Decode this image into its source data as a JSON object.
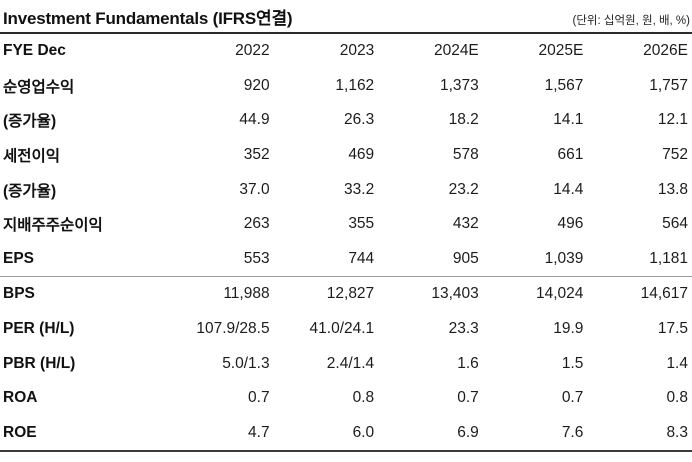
{
  "header": {
    "title": "Investment Fundamentals (IFRS연결)",
    "unit_note": "(단위: 십억원, 원, 배, %)"
  },
  "table": {
    "columns": [
      "FYE Dec",
      "2022",
      "2023",
      "2024E",
      "2025E",
      "2026E"
    ],
    "rows": [
      {
        "label": "순영업수익",
        "values": [
          "920",
          "1,162",
          "1,373",
          "1,567",
          "1,757"
        ]
      },
      {
        "label": "(증가율)",
        "values": [
          "44.9",
          "26.3",
          "18.2",
          "14.1",
          "12.1"
        ]
      },
      {
        "label": "세전이익",
        "values": [
          "352",
          "469",
          "578",
          "661",
          "752"
        ]
      },
      {
        "label": "(증가율)",
        "values": [
          "37.0",
          "33.2",
          "23.2",
          "14.4",
          "13.8"
        ]
      },
      {
        "label": "지배주주순이익",
        "values": [
          "263",
          "355",
          "432",
          "496",
          "564"
        ]
      },
      {
        "label": "EPS",
        "values": [
          "553",
          "744",
          "905",
          "1,039",
          "1,181"
        ]
      },
      {
        "label": "BPS",
        "values": [
          "11,988",
          "12,827",
          "13,403",
          "14,024",
          "14,617"
        ]
      },
      {
        "label": "PER (H/L)",
        "values": [
          "107.9/28.5",
          "41.0/24.1",
          "23.3",
          "19.9",
          "17.5"
        ]
      },
      {
        "label": "PBR (H/L)",
        "values": [
          "5.0/1.3",
          "2.4/1.4",
          "1.6",
          "1.5",
          "1.4"
        ]
      },
      {
        "label": "ROA",
        "values": [
          "0.7",
          "0.8",
          "0.7",
          "0.7",
          "0.8"
        ]
      },
      {
        "label": "ROE",
        "values": [
          "4.7",
          "6.0",
          "6.9",
          "7.6",
          "8.3"
        ]
      }
    ],
    "separator_after_row_index": 5
  },
  "colors": {
    "rule_dark": "#2b2b2b",
    "rule_light": "#9a9a9a",
    "rule_bottom": "#3a3a3a",
    "text": "#1c1c1c",
    "background": "#ffffff"
  },
  "chart_data": {
    "type": "table",
    "title": "Investment Fundamentals (IFRS연결)",
    "unit": "(단위: 십억원, 원, 배, %)",
    "columns": [
      "FYE Dec",
      "2022",
      "2023",
      "2024E",
      "2025E",
      "2026E"
    ],
    "rows": [
      [
        "순영업수익",
        "920",
        "1,162",
        "1,373",
        "1,567",
        "1,757"
      ],
      [
        "(증가율)",
        "44.9",
        "26.3",
        "18.2",
        "14.1",
        "12.1"
      ],
      [
        "세전이익",
        "352",
        "469",
        "578",
        "661",
        "752"
      ],
      [
        "(증가율)",
        "37.0",
        "33.2",
        "23.2",
        "14.4",
        "13.8"
      ],
      [
        "지배주주순이익",
        "263",
        "355",
        "432",
        "496",
        "564"
      ],
      [
        "EPS",
        "553",
        "744",
        "905",
        "1,039",
        "1,181"
      ],
      [
        "BPS",
        "11,988",
        "12,827",
        "13,403",
        "14,024",
        "14,617"
      ],
      [
        "PER (H/L)",
        "107.9/28.5",
        "41.0/24.1",
        "23.3",
        "19.9",
        "17.5"
      ],
      [
        "PBR (H/L)",
        "5.0/1.3",
        "2.4/1.4",
        "1.6",
        "1.5",
        "1.4"
      ],
      [
        "ROA",
        "0.7",
        "0.8",
        "0.7",
        "0.7",
        "0.8"
      ],
      [
        "ROE",
        "4.7",
        "6.0",
        "6.9",
        "7.6",
        "8.3"
      ]
    ]
  }
}
